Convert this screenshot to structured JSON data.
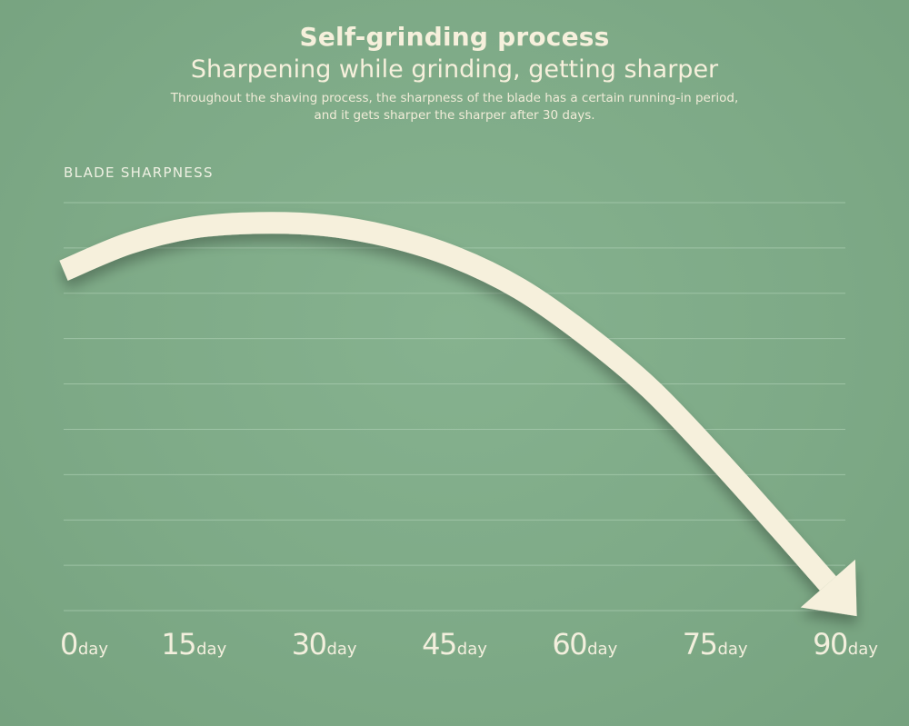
{
  "header": {
    "title": "Self-grinding process",
    "subtitle": "Sharpening while grinding, getting sharper",
    "description_line1": "Throughout the shaving process, the sharpness of the blade has a certain running-in period,",
    "description_line2": "and it gets sharper the sharper after 30 days."
  },
  "chart_data": {
    "type": "line",
    "title": "Self-grinding process",
    "ylabel": "BLADE SHARPNESS",
    "xlabel": "",
    "x_unit": "day",
    "x": [
      0,
      15,
      30,
      45,
      60,
      75,
      90
    ],
    "xlim": [
      0,
      90
    ],
    "ylim": [
      0,
      9
    ],
    "grid": true,
    "series": [
      {
        "x": [
          0,
          7.5,
          15,
          22.5,
          30,
          37.5,
          45,
          52.5,
          60,
          67.5,
          75,
          82.5,
          88
        ],
        "values": [
          7.5,
          8.1,
          8.45,
          8.55,
          8.5,
          8.25,
          7.8,
          7.1,
          6.1,
          4.9,
          3.4,
          1.8,
          0.6
        ]
      }
    ],
    "arrow_color": "#f6f0dc",
    "background_color": "#7eaa87",
    "grid_color": "#a9ccb0"
  }
}
